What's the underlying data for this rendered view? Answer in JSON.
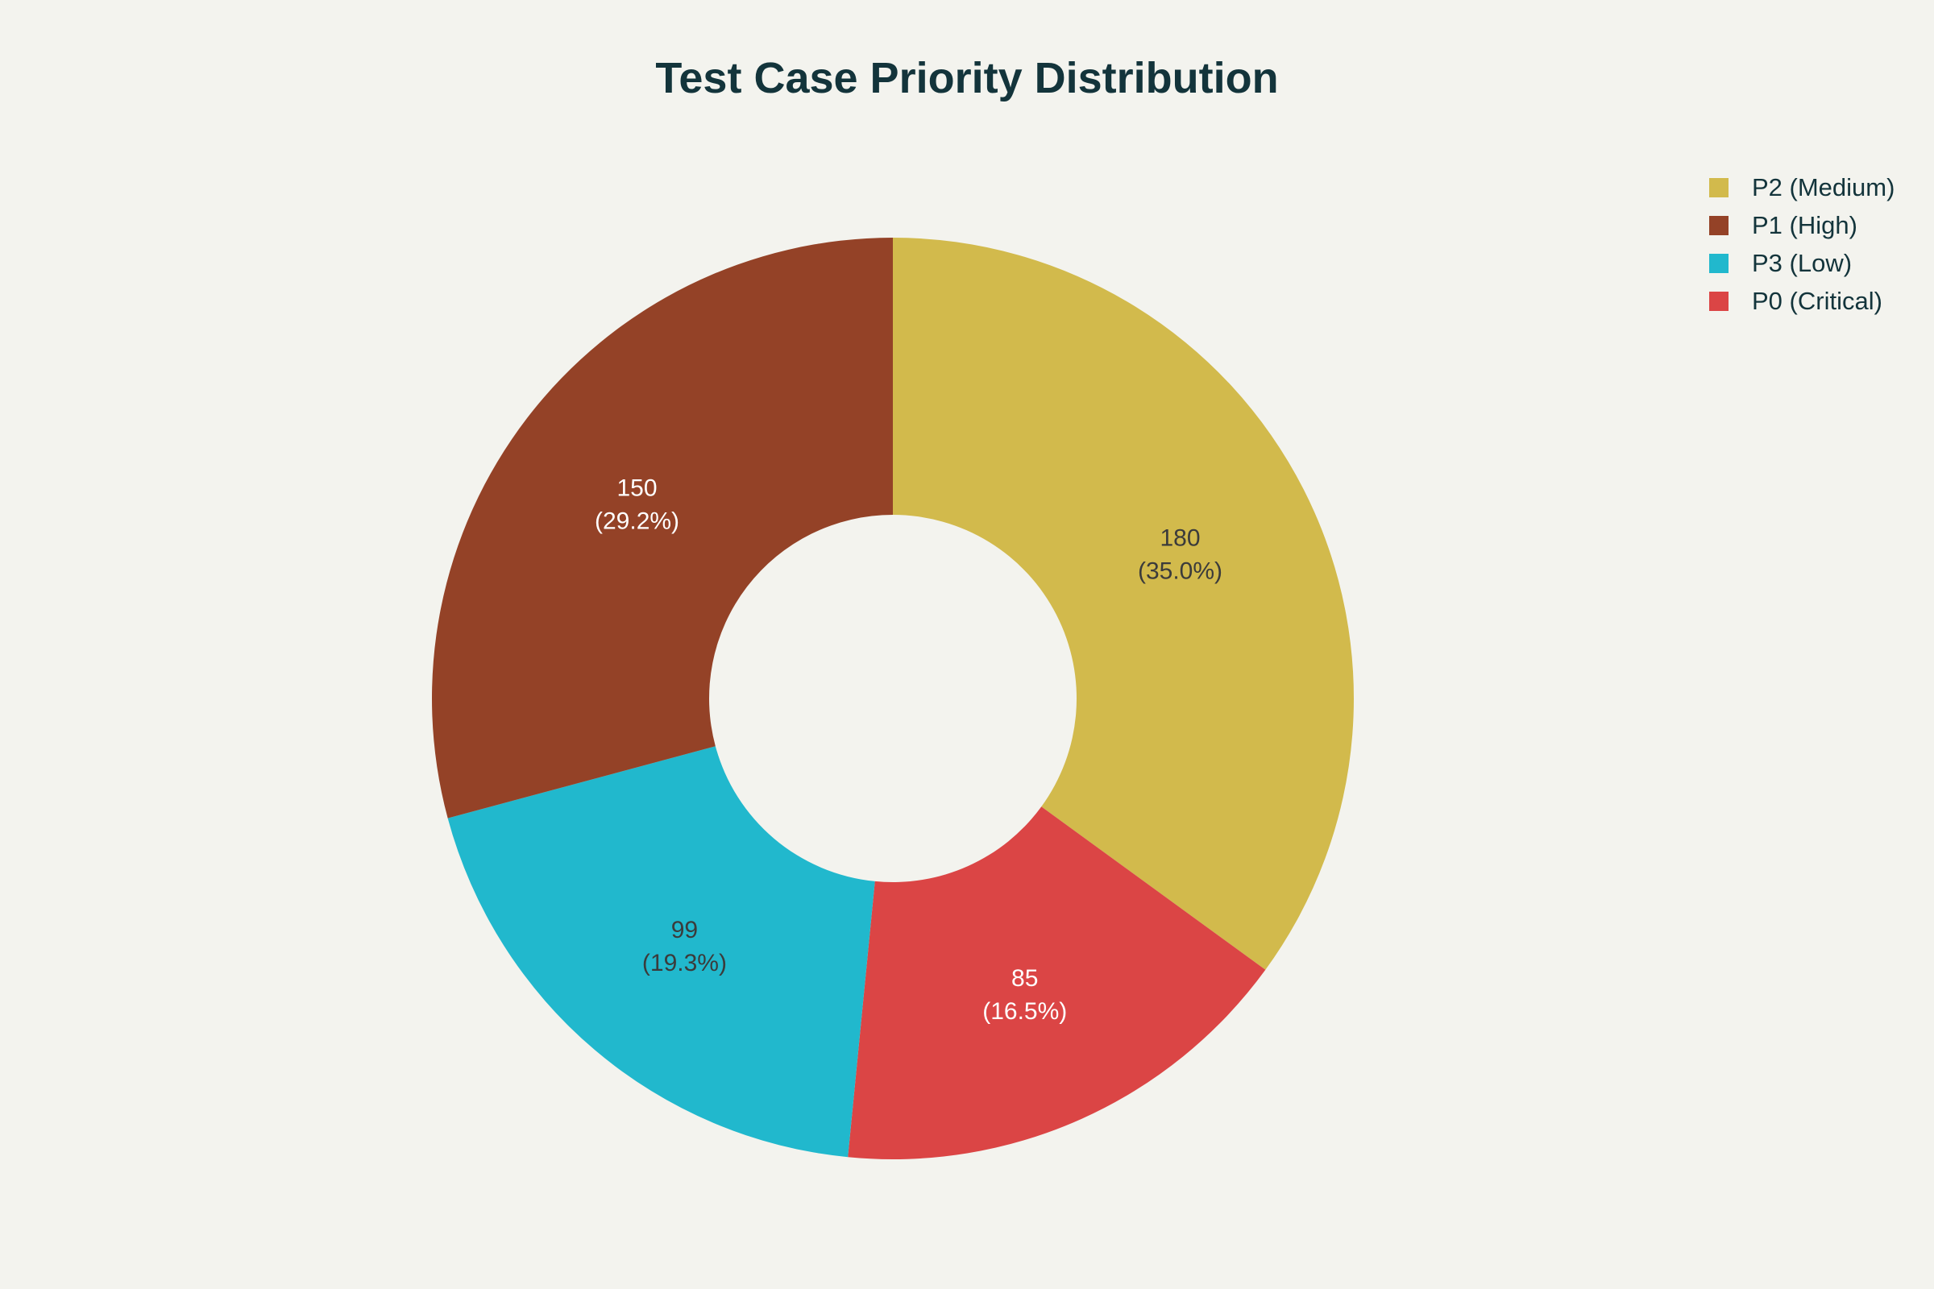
{
  "chart_data": {
    "type": "pie",
    "variant": "donut",
    "title": "Test Case Priority Distribution",
    "slices": [
      {
        "name": "P2 (Medium)",
        "value": 180,
        "percent_label": "(35.0%)",
        "value_label": "180",
        "color": "#d2ba4c",
        "label_color": "#3b3b3b"
      },
      {
        "name": "P0 (Critical)",
        "value": 85,
        "percent_label": "(16.5%)",
        "value_label": "85",
        "color": "#db4545",
        "label_color": "#ffffff"
      },
      {
        "name": "P3 (Low)",
        "value": 99,
        "percent_label": "(19.3%)",
        "value_label": "99",
        "color": "#21b8cd",
        "label_color": "#3b3b3b"
      },
      {
        "name": "P1 (High)",
        "value": 150,
        "percent_label": "(29.2%)",
        "value_label": "150",
        "color": "#944227",
        "label_color": "#ffffff"
      }
    ],
    "legend": {
      "placement": "top-right",
      "items": [
        {
          "name": "P2 (Medium)",
          "color": "#d2ba4c"
        },
        {
          "name": "P1 (High)",
          "color": "#944227"
        },
        {
          "name": "P3 (Low)",
          "color": "#21b8cd"
        },
        {
          "name": "P0 (Critical)",
          "color": "#db4545"
        }
      ]
    },
    "direction": "clockwise",
    "start_angle": "top"
  }
}
